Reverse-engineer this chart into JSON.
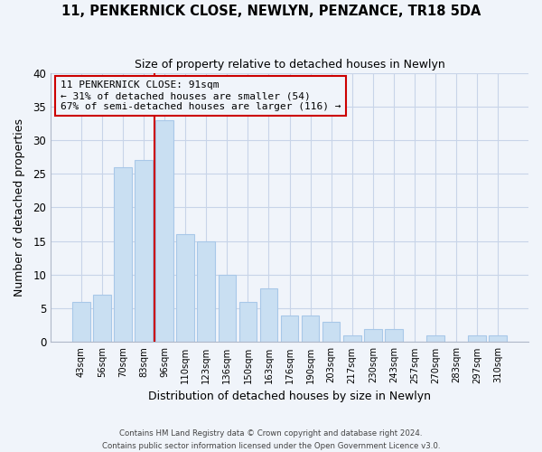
{
  "title": "11, PENKERNICK CLOSE, NEWLYN, PENZANCE, TR18 5DA",
  "subtitle": "Size of property relative to detached houses in Newlyn",
  "xlabel": "Distribution of detached houses by size in Newlyn",
  "ylabel": "Number of detached properties",
  "categories": [
    "43sqm",
    "56sqm",
    "70sqm",
    "83sqm",
    "96sqm",
    "110sqm",
    "123sqm",
    "136sqm",
    "150sqm",
    "163sqm",
    "176sqm",
    "190sqm",
    "203sqm",
    "217sqm",
    "230sqm",
    "243sqm",
    "257sqm",
    "270sqm",
    "283sqm",
    "297sqm",
    "310sqm"
  ],
  "values": [
    6,
    7,
    26,
    27,
    33,
    16,
    15,
    10,
    6,
    8,
    4,
    4,
    3,
    1,
    2,
    2,
    0,
    1,
    0,
    1,
    1
  ],
  "bar_color": "#c9dff2",
  "bar_edge_color": "#a8c8e8",
  "vline_color": "#cc0000",
  "vline_index": 4,
  "ylim": [
    0,
    40
  ],
  "yticks": [
    0,
    5,
    10,
    15,
    20,
    25,
    30,
    35,
    40
  ],
  "annotation_title": "11 PENKERNICK CLOSE: 91sqm",
  "annotation_line1": "← 31% of detached houses are smaller (54)",
  "annotation_line2": "67% of semi-detached houses are larger (116) →",
  "annotation_box_edge": "#cc0000",
  "footer1": "Contains HM Land Registry data © Crown copyright and database right 2024.",
  "footer2": "Contains public sector information licensed under the Open Government Licence v3.0.",
  "background_color": "#f0f4fa",
  "grid_color": "#c8d4e8"
}
